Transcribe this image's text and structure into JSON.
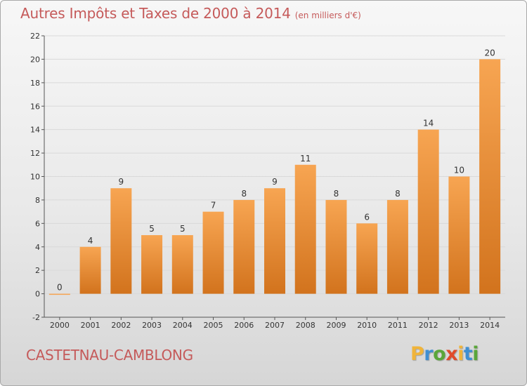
{
  "header": {
    "title": "Autres Impôts et Taxes de 2000 à 2014",
    "subtitle": "(en milliers d'€)"
  },
  "footer": {
    "commune": "CASTETNAU-CAMBLONG",
    "logo_letters": [
      "P",
      "r",
      "o",
      "x",
      "i",
      "t",
      "i"
    ],
    "logo_colors": [
      "#f0b43a",
      "#3f8fd2",
      "#5aa63a",
      "#e04b2b",
      "#f0b43a",
      "#3f8fd2",
      "#5aa63a"
    ]
  },
  "colors": {
    "bar_light": "#f7a552",
    "bar_dark": "#d2731d",
    "title": "#c55a5a",
    "grid": "#d9d9d9"
  },
  "chart_data": {
    "type": "bar",
    "categories": [
      "2000",
      "2001",
      "2002",
      "2003",
      "2004",
      "2005",
      "2006",
      "2007",
      "2008",
      "2009",
      "2010",
      "2011",
      "2012",
      "2013",
      "2014"
    ],
    "values": [
      0,
      4,
      9,
      5,
      5,
      7,
      8,
      9,
      11,
      8,
      6,
      8,
      14,
      10,
      20
    ],
    "ylim": [
      -2,
      22
    ],
    "yticks": [
      -2,
      0,
      2,
      4,
      6,
      8,
      10,
      12,
      14,
      16,
      18,
      20,
      22
    ],
    "grid": true
  }
}
